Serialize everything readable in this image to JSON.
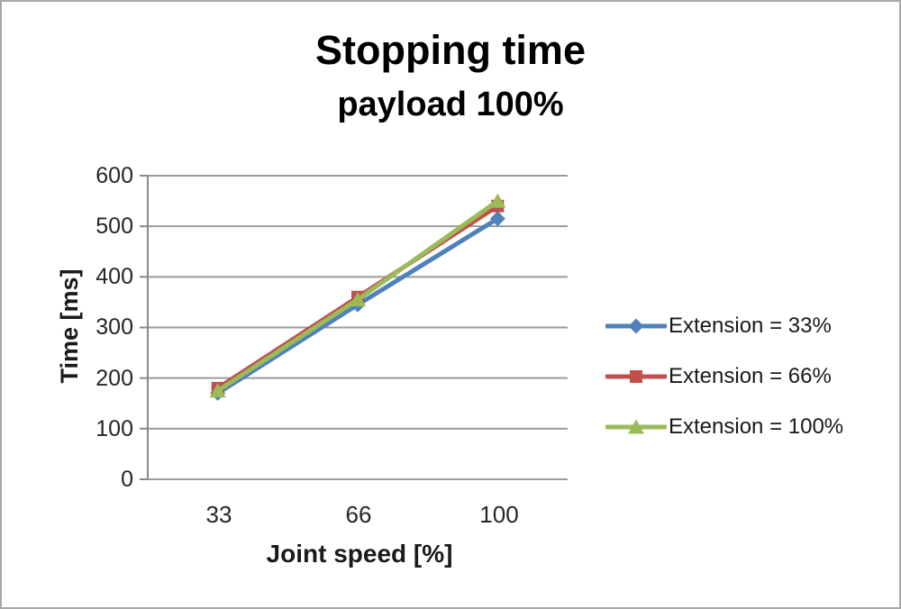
{
  "title": {
    "line1": "Stopping time",
    "line2": "payload 100%"
  },
  "axes": {
    "y": {
      "label": "Time [ms]",
      "tick_labels": [
        "0",
        "100",
        "200",
        "300",
        "400",
        "500",
        "600"
      ],
      "min": 0,
      "max": 600
    },
    "x": {
      "label": "Joint speed [%]",
      "tick_labels": [
        "33",
        "66",
        "100"
      ]
    }
  },
  "colors": {
    "grid": "#9b9b9b",
    "axis": "#8a8a8a",
    "background": "#ffffff",
    "border": "#a8a8a8",
    "series_blue": "#4F81BD",
    "series_red": "#C0504D",
    "series_green": "#9BBB59"
  },
  "chart_data": {
    "type": "line",
    "title": "Stopping time payload 100%",
    "xlabel": "Joint speed [%]",
    "ylabel": "Time [ms]",
    "categories": [
      "33",
      "66",
      "100"
    ],
    "series": [
      {
        "name": "Extension = 33%",
        "color": "#4F81BD",
        "marker": "diamond",
        "values": [
          170,
          345,
          515
        ]
      },
      {
        "name": "Extension = 66%",
        "color": "#C0504D",
        "marker": "square",
        "values": [
          180,
          360,
          540
        ]
      },
      {
        "name": "Extension = 100%",
        "color": "#9BBB59",
        "marker": "triangle",
        "values": [
          175,
          355,
          550
        ]
      }
    ],
    "ylim": [
      0,
      600
    ],
    "ytick_step": 100,
    "grid": "horizontal",
    "legend_position": "right"
  }
}
